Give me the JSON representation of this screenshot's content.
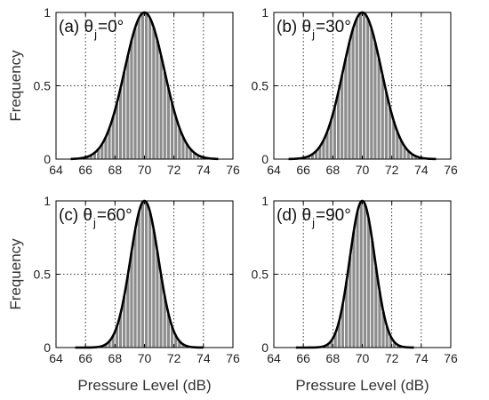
{
  "chart_data": [
    {
      "type": "bar",
      "panel_label": "(a)",
      "theta_symbol": "θ",
      "theta_subscript": "j",
      "theta_value": "=0°",
      "ylabel": "Frequency",
      "xlabel": "",
      "xlim": [
        64,
        76
      ],
      "ylim": [
        0,
        1
      ],
      "xticks": [
        "64",
        "66",
        "68",
        "70",
        "72",
        "74",
        "76"
      ],
      "yticks": [
        "0",
        "0.5",
        "1"
      ],
      "grid": "dotted",
      "gaussian": {
        "mean": 70,
        "sigma": 1.35,
        "x_range": [
          65,
          75
        ]
      },
      "bars": {
        "bin_width": 0.25,
        "x_range": [
          66,
          74
        ]
      }
    },
    {
      "type": "bar",
      "panel_label": "(b)",
      "theta_symbol": "θ",
      "theta_subscript": "j",
      "theta_value": "=30°",
      "ylabel": "",
      "xlabel": "",
      "xlim": [
        64,
        76
      ],
      "ylim": [
        0,
        1
      ],
      "xticks": [
        "64",
        "66",
        "68",
        "70",
        "72",
        "74",
        "76"
      ],
      "yticks": [
        "0",
        "0.5",
        "1"
      ],
      "grid": "dotted",
      "gaussian": {
        "mean": 70,
        "sigma": 1.3,
        "x_range": [
          65,
          75
        ]
      },
      "bars": {
        "bin_width": 0.25,
        "x_range": [
          66,
          74
        ]
      }
    },
    {
      "type": "bar",
      "panel_label": "(c)",
      "theta_symbol": "θ",
      "theta_subscript": "j",
      "theta_value": "=60°",
      "ylabel": "Frequency",
      "xlabel": "Pressure Level (dB)",
      "xlim": [
        64,
        76
      ],
      "ylim": [
        0,
        1
      ],
      "xticks": [
        "64",
        "66",
        "68",
        "70",
        "72",
        "74",
        "76"
      ],
      "yticks": [
        "0",
        "0.5",
        "1"
      ],
      "grid": "dotted",
      "gaussian": {
        "mean": 70,
        "sigma": 0.95,
        "x_range": [
          65.3,
          74
        ]
      },
      "bars": {
        "bin_width": 0.25,
        "x_range": [
          66.5,
          73.5
        ]
      }
    },
    {
      "type": "bar",
      "panel_label": "(d)",
      "theta_symbol": "θ",
      "theta_subscript": "j",
      "theta_value": "=90°",
      "ylabel": "",
      "xlabel": "Pressure Level (dB)",
      "xlim": [
        64,
        76
      ],
      "ylim": [
        0,
        1
      ],
      "xticks": [
        "64",
        "66",
        "68",
        "70",
        "72",
        "74",
        "76"
      ],
      "yticks": [
        "0",
        "0.5",
        "1"
      ],
      "grid": "dotted",
      "gaussian": {
        "mean": 70,
        "sigma": 0.85,
        "x_range": [
          65.5,
          73.5
        ]
      },
      "bars": {
        "bin_width": 0.25,
        "x_range": [
          66.8,
          73.2
        ]
      }
    }
  ]
}
